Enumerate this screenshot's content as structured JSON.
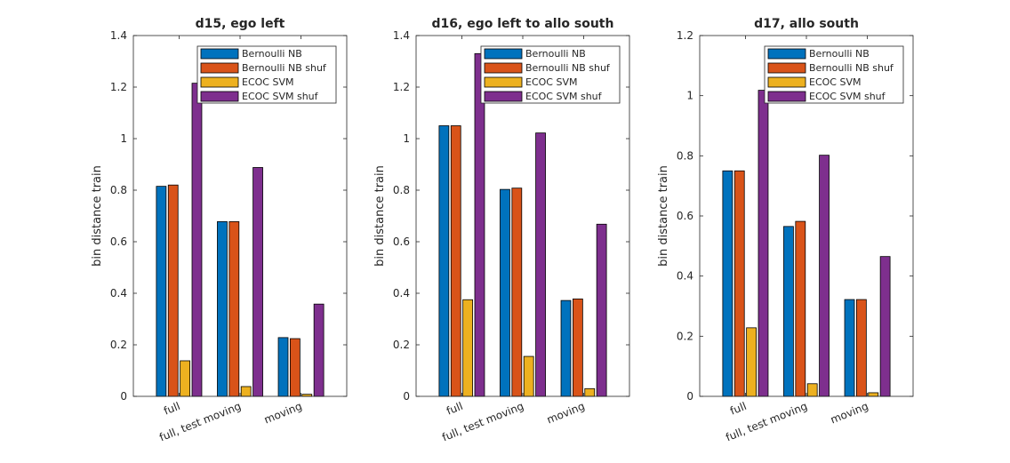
{
  "figure": {
    "legend": [
      "Bernoulli NB",
      "Bernoulli NB shuf",
      "ECOC SVM",
      "ECOC SVM shuf"
    ],
    "colors": [
      "#0072BD",
      "#D95319",
      "#EDB120",
      "#7E2F8E"
    ],
    "background": "#ffffff",
    "axis_color": "#262626"
  },
  "chart_data": [
    {
      "type": "bar",
      "title": "d15, ego left",
      "ylabel": "bin distance train",
      "xlabel": "",
      "ylim": [
        0,
        1.4
      ],
      "yticks": [
        "0",
        "0.2",
        "0.4",
        "0.6",
        "0.8",
        "1",
        "1.2",
        "1.4"
      ],
      "categories": [
        "full",
        "full, test moving",
        "moving"
      ],
      "legend_position": "top-right",
      "grid": false,
      "series": [
        {
          "name": "Bernoulli NB",
          "values": [
            0.815,
            0.678,
            0.228
          ]
        },
        {
          "name": "Bernoulli NB shuf",
          "values": [
            0.82,
            0.678,
            0.224
          ]
        },
        {
          "name": "ECOC SVM",
          "values": [
            0.138,
            0.038,
            0.008
          ]
        },
        {
          "name": "ECOC SVM shuf",
          "values": [
            1.215,
            0.888,
            0.358
          ]
        }
      ]
    },
    {
      "type": "bar",
      "title": "d16, ego left to allo south",
      "ylabel": "bin distance train",
      "xlabel": "",
      "ylim": [
        0,
        1.4
      ],
      "yticks": [
        "0",
        "0.2",
        "0.4",
        "0.6",
        "0.8",
        "1",
        "1.2",
        "1.4"
      ],
      "categories": [
        "full",
        "full, test moving",
        "moving"
      ],
      "legend_position": "top-right",
      "grid": false,
      "series": [
        {
          "name": "Bernoulli NB",
          "values": [
            1.05,
            0.803,
            0.372
          ]
        },
        {
          "name": "Bernoulli NB shuf",
          "values": [
            1.05,
            0.808,
            0.378
          ]
        },
        {
          "name": "ECOC SVM",
          "values": [
            0.375,
            0.155,
            0.03
          ]
        },
        {
          "name": "ECOC SVM shuf",
          "values": [
            1.33,
            1.022,
            0.668
          ]
        }
      ]
    },
    {
      "type": "bar",
      "title": "d17, allo south",
      "ylabel": "bin distance train",
      "xlabel": "",
      "ylim": [
        0,
        1.2
      ],
      "yticks": [
        "0",
        "0.2",
        "0.4",
        "0.6",
        "0.8",
        "1",
        "1.2"
      ],
      "categories": [
        "full",
        "full, test moving",
        "moving"
      ],
      "legend_position": "top-right",
      "grid": false,
      "series": [
        {
          "name": "Bernoulli NB",
          "values": [
            0.75,
            0.565,
            0.322
          ]
        },
        {
          "name": "Bernoulli NB shuf",
          "values": [
            0.75,
            0.582,
            0.322
          ]
        },
        {
          "name": "ECOC SVM",
          "values": [
            0.228,
            0.042,
            0.012
          ]
        },
        {
          "name": "ECOC SVM shuf",
          "values": [
            1.018,
            0.802,
            0.465
          ]
        }
      ]
    }
  ]
}
